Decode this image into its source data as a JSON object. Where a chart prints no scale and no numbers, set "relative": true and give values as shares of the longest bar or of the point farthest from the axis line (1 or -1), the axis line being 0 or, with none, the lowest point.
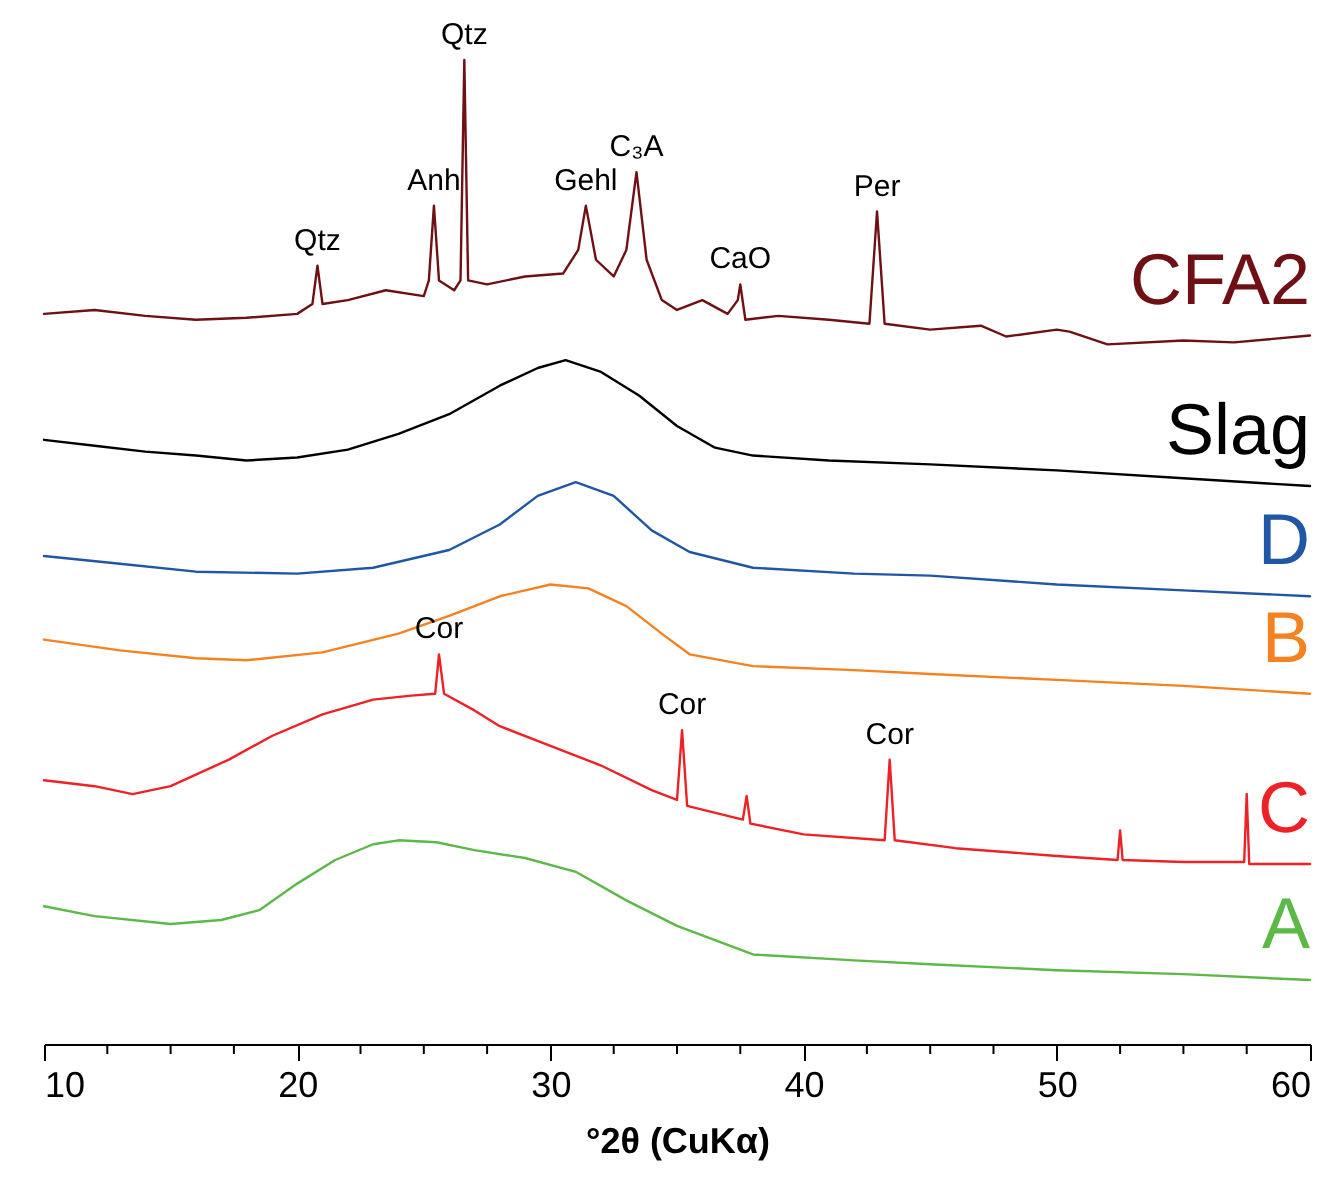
{
  "chart_data": {
    "type": "line",
    "relative": true,
    "xlabel": "°2θ (CuKα)",
    "xlim": [
      10,
      60
    ],
    "xticks": [
      10,
      {
        "value": 12.5,
        "label": null
      },
      {
        "value": 15,
        "label": null
      },
      {
        "value": 17.5,
        "label": null
      },
      20,
      {
        "value": 22.5,
        "label": null
      },
      {
        "value": 25,
        "label": null
      },
      {
        "value": 27.5,
        "label": null
      },
      30,
      {
        "value": 32.5,
        "label": null
      },
      {
        "value": 35,
        "label": null
      },
      {
        "value": 37.5,
        "label": null
      },
      40,
      {
        "value": 42.5,
        "label": null
      },
      {
        "value": 45,
        "label": null
      },
      {
        "value": 47.5,
        "label": null
      },
      50,
      {
        "value": 52.5,
        "label": null
      },
      {
        "value": 55,
        "label": null
      },
      {
        "value": 57.5,
        "label": null
      },
      60
    ],
    "series": [
      {
        "name": "CFA2",
        "color": "#6e1014",
        "x": [
          10,
          12,
          14,
          16,
          18,
          20,
          20.6,
          20.8,
          21,
          22,
          23.5,
          25,
          25.2,
          25.4,
          25.6,
          26.2,
          26.45,
          26.6,
          26.75,
          27.5,
          29,
          30.5,
          31.1,
          31.4,
          31.8,
          32.5,
          33,
          33.4,
          33.8,
          34.4,
          35,
          36,
          37,
          37.4,
          37.5,
          37.7,
          39,
          41,
          42.6,
          42.9,
          43.2,
          45,
          47,
          48,
          50,
          50.5,
          52,
          55,
          57,
          60
        ],
        "values": [
          0.742,
          0.746,
          0.74,
          0.736,
          0.738,
          0.742,
          0.752,
          0.791,
          0.752,
          0.756,
          0.766,
          0.76,
          0.776,
          0.852,
          0.776,
          0.766,
          0.776,
          1.0,
          0.776,
          0.772,
          0.78,
          0.783,
          0.807,
          0.852,
          0.797,
          0.78,
          0.807,
          0.886,
          0.797,
          0.756,
          0.746,
          0.756,
          0.742,
          0.756,
          0.772,
          0.736,
          0.74,
          0.736,
          0.732,
          0.846,
          0.732,
          0.726,
          0.73,
          0.719,
          0.726,
          0.724,
          0.711,
          0.715,
          0.713,
          0.72
        ]
      },
      {
        "name": "Slag",
        "color": "#000000",
        "x": [
          10,
          12,
          14,
          16,
          18,
          20,
          22,
          24,
          26,
          28,
          29.5,
          30.6,
          32,
          33.5,
          35,
          36.5,
          38,
          41,
          45,
          50,
          55,
          60
        ],
        "values": [
          0.614,
          0.608,
          0.602,
          0.598,
          0.593,
          0.596,
          0.604,
          0.62,
          0.64,
          0.669,
          0.687,
          0.695,
          0.683,
          0.659,
          0.628,
          0.606,
          0.598,
          0.593,
          0.589,
          0.583,
          0.575,
          0.567
        ]
      },
      {
        "name": "D",
        "color": "#1f56a6",
        "x": [
          10,
          13,
          16,
          20,
          23,
          26,
          28,
          29.5,
          31,
          32.5,
          34,
          35.5,
          38,
          42,
          45,
          50,
          55,
          60
        ],
        "values": [
          0.496,
          0.488,
          0.48,
          0.478,
          0.484,
          0.502,
          0.528,
          0.557,
          0.571,
          0.557,
          0.522,
          0.5,
          0.484,
          0.478,
          0.476,
          0.467,
          0.461,
          0.455
        ]
      },
      {
        "name": "B",
        "color": "#f58220",
        "x": [
          10,
          13,
          16,
          18,
          21,
          24,
          26,
          28,
          30,
          31.5,
          33,
          34.5,
          35.5,
          38,
          42,
          45,
          50,
          55,
          60
        ],
        "values": [
          0.411,
          0.4,
          0.392,
          0.39,
          0.398,
          0.417,
          0.435,
          0.455,
          0.467,
          0.463,
          0.445,
          0.415,
          0.396,
          0.384,
          0.38,
          0.376,
          0.37,
          0.364,
          0.356
        ]
      },
      {
        "name": "C",
        "color": "#ec2227",
        "x": [
          10,
          12,
          13.5,
          15,
          17.3,
          19,
          21,
          23,
          24.5,
          25.45,
          25.6,
          25.8,
          27,
          28,
          30,
          32,
          34,
          35,
          35.2,
          35.4,
          37.6,
          37.75,
          37.9,
          40,
          43.2,
          43.4,
          43.6,
          46,
          50,
          52.4,
          52.5,
          52.6,
          55,
          57.4,
          57.5,
          57.6,
          60
        ],
        "values": [
          0.268,
          0.262,
          0.254,
          0.262,
          0.289,
          0.313,
          0.335,
          0.35,
          0.354,
          0.356,
          0.396,
          0.356,
          0.339,
          0.323,
          0.303,
          0.283,
          0.258,
          0.248,
          0.319,
          0.242,
          0.228,
          0.252,
          0.224,
          0.213,
          0.207,
          0.289,
          0.207,
          0.199,
          0.191,
          0.187,
          0.217,
          0.187,
          0.185,
          0.185,
          0.254,
          0.183,
          0.183
        ]
      },
      {
        "name": "A",
        "color": "#5cb947",
        "x": [
          10,
          12,
          15,
          17,
          18.5,
          20,
          21.5,
          23,
          24,
          25.5,
          27,
          29,
          31,
          33,
          35,
          38,
          42,
          45,
          50,
          55,
          60
        ],
        "values": [
          0.14,
          0.13,
          0.122,
          0.126,
          0.136,
          0.163,
          0.187,
          0.203,
          0.207,
          0.205,
          0.197,
          0.189,
          0.175,
          0.146,
          0.12,
          0.091,
          0.085,
          0.081,
          0.075,
          0.071,
          0.065
        ]
      }
    ],
    "annotations": [
      {
        "text": "Qtz",
        "x": 20.8,
        "y": 0.791
      },
      {
        "text": "Anh",
        "x": 25.4,
        "y": 0.852
      },
      {
        "text": "Qtz",
        "x": 26.6,
        "y": 1.0
      },
      {
        "text": "Gehl",
        "x": 31.4,
        "y": 0.852
      },
      {
        "text": "C₃A",
        "x": 33.4,
        "y": 0.886
      },
      {
        "text": "CaO",
        "x": 37.5,
        "y": 0.772
      },
      {
        "text": "Per",
        "x": 42.9,
        "y": 0.846
      },
      {
        "text": "Cor",
        "x": 25.6,
        "y": 0.396
      },
      {
        "text": "Cor",
        "x": 35.2,
        "y": 0.319
      },
      {
        "text": "Cor",
        "x": 43.4,
        "y": 0.289
      }
    ]
  }
}
